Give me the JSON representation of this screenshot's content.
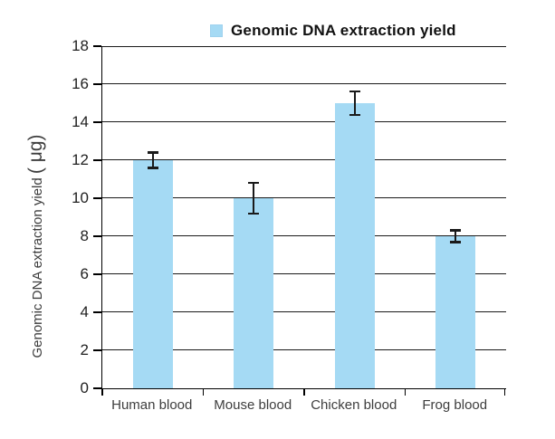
{
  "legend": {
    "label": "Genomic DNA extraction yield"
  },
  "y_axis": {
    "title": "Genomic DNA extraction yield",
    "unit": "( μg)",
    "tick_labels": [
      "0",
      "2",
      "4",
      "6",
      "8",
      "10",
      "12",
      "14",
      "16",
      "18"
    ]
  },
  "chart_data": {
    "type": "bar",
    "categories": [
      "Human blood",
      "Mouse blood",
      "Chicken blood",
      "Frog blood"
    ],
    "values": [
      12,
      10,
      15,
      8
    ],
    "errors": [
      0.4,
      0.8,
      0.6,
      0.3
    ],
    "title": "",
    "legend": [
      "Genomic DNA extraction yield"
    ],
    "legend_position": "top",
    "xlabel": "",
    "ylabel": "Genomic DNA extraction yield ( μg)",
    "ylabel_main": "Genomic DNA extraction yield ",
    "ylabel_unit": "( μg)",
    "ylim": [
      0,
      18
    ],
    "ytick_step": 2,
    "grid": true,
    "bar_color": "#a5daf4",
    "error_color": "#1a1a1a"
  }
}
